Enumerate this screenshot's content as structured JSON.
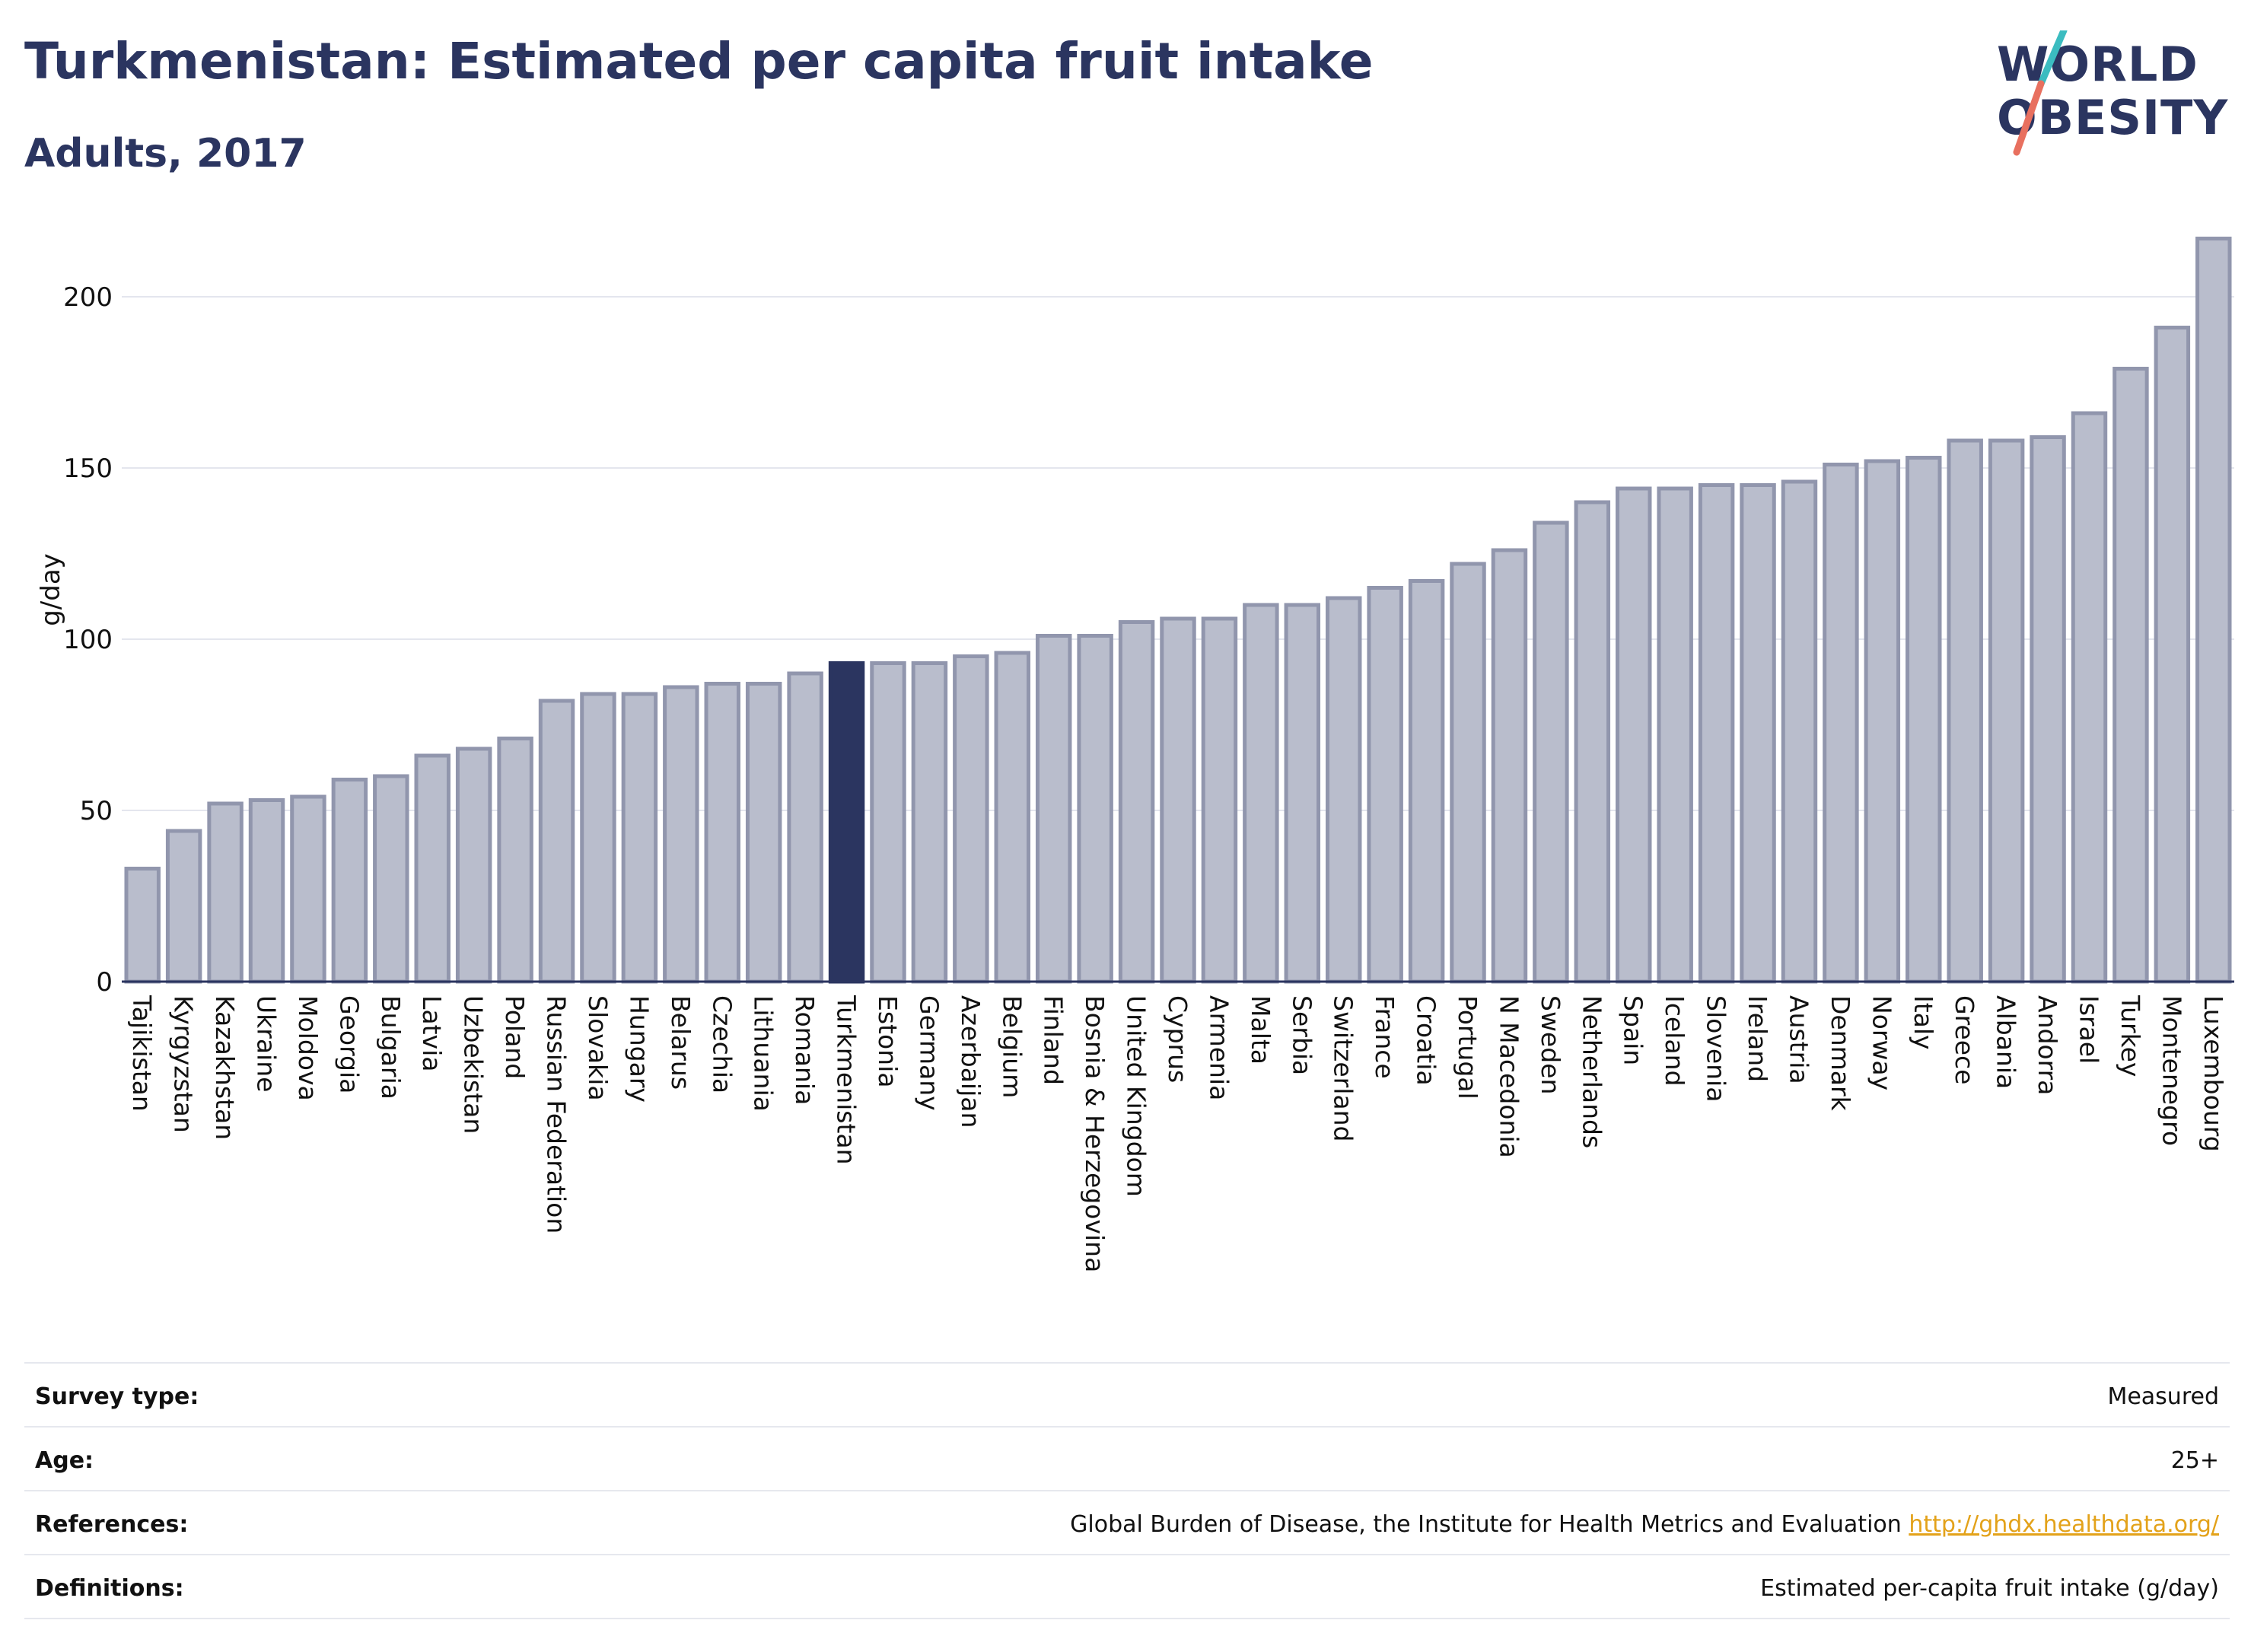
{
  "header": {
    "title": "Turkmenistan: Estimated per capita fruit intake",
    "subtitle": "Adults, 2017",
    "logo_line1": "WORLD",
    "logo_line2": "OBESITY"
  },
  "chart_data": {
    "type": "bar",
    "ylabel": "g/day",
    "ylim": [
      0,
      220
    ],
    "yticks": [
      0,
      50,
      100,
      150,
      200
    ],
    "grid": true,
    "highlight": "Turkmenistan",
    "categories": [
      "Tajikistan",
      "Kyrgyzstan",
      "Kazakhstan",
      "Ukraine",
      "Moldova",
      "Georgia",
      "Bulgaria",
      "Latvia",
      "Uzbekistan",
      "Poland",
      "Russian Federation",
      "Slovakia",
      "Hungary",
      "Belarus",
      "Czechia",
      "Lithuania",
      "Romania",
      "Turkmenistan",
      "Estonia",
      "Germany",
      "Azerbaijan",
      "Belgium",
      "Finland",
      "Bosnia & Herzegovina",
      "United Kingdom",
      "Cyprus",
      "Armenia",
      "Malta",
      "Serbia",
      "Switzerland",
      "France",
      "Croatia",
      "Portugal",
      "N Macedonia",
      "Sweden",
      "Netherlands",
      "Spain",
      "Iceland",
      "Slovenia",
      "Ireland",
      "Austria",
      "Denmark",
      "Norway",
      "Italy",
      "Greece",
      "Albania",
      "Andorra",
      "Israel",
      "Turkey",
      "Montenegro",
      "Luxembourg"
    ],
    "values": [
      33,
      44,
      52,
      53,
      54,
      59,
      60,
      66,
      68,
      71,
      82,
      84,
      84,
      86,
      87,
      87,
      90,
      93,
      93,
      93,
      95,
      96,
      101,
      101,
      105,
      106,
      106,
      110,
      110,
      112,
      115,
      117,
      122,
      126,
      134,
      140,
      144,
      144,
      145,
      145,
      146,
      151,
      152,
      153,
      158,
      158,
      159,
      166,
      179,
      191,
      217
    ]
  },
  "colors": {
    "bar": "#b9bdcc",
    "bar_edge": "#9196ad",
    "highlight": "#2b3560",
    "logo_teal": "#3bbcc0",
    "logo_coral": "#e8705f",
    "link": "#e3a21a"
  },
  "info": {
    "survey_label": "Survey type:",
    "survey_value": "Measured",
    "age_label": "Age:",
    "age_value": "25+",
    "ref_label": "References:",
    "ref_text": "Global Burden of Disease, the Institute for Health Metrics and Evaluation ",
    "ref_link": "http://ghdx.healthdata.org/",
    "def_label": "Definitions:",
    "def_value": "Estimated per-capita fruit intake (g/day)"
  }
}
